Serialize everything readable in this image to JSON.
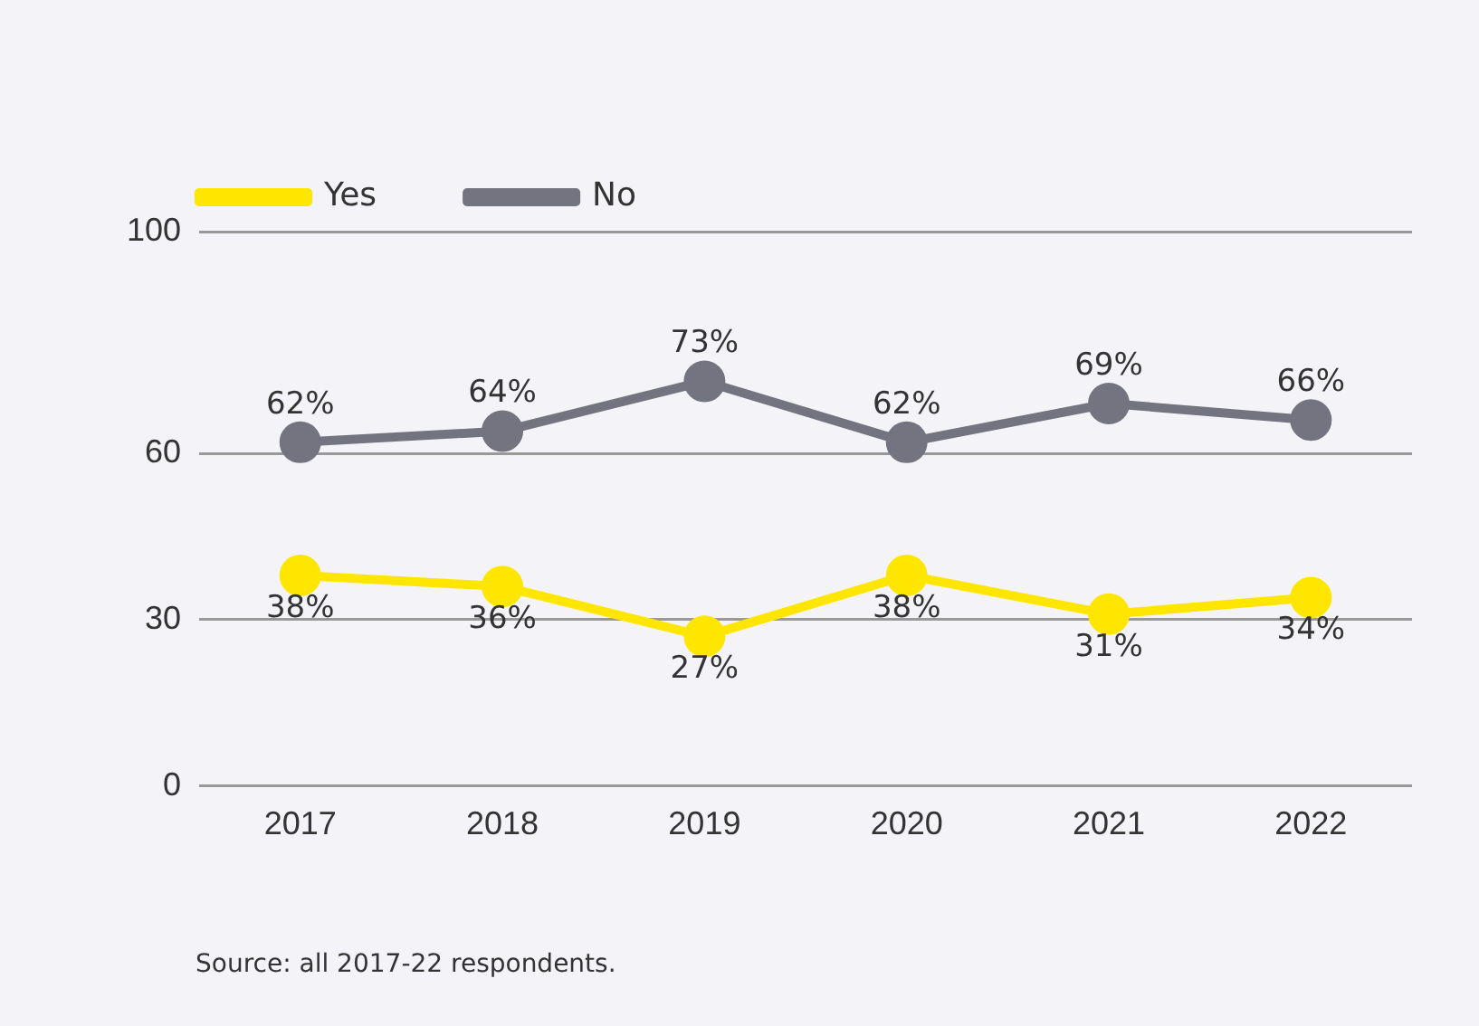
{
  "chart_data": {
    "type": "line",
    "categories": [
      "2017",
      "2018",
      "2019",
      "2020",
      "2021",
      "2022"
    ],
    "series": [
      {
        "name": "Yes",
        "color": "#ffe600",
        "values": [
          38,
          36,
          27,
          38,
          31,
          34
        ],
        "value_labels": [
          "38%",
          "36%",
          "27%",
          "38%",
          "31%",
          "34%"
        ]
      },
      {
        "name": "No",
        "color": "#747480",
        "values": [
          62,
          64,
          73,
          62,
          69,
          66
        ],
        "value_labels": [
          "62%",
          "64%",
          "73%",
          "62%",
          "69%",
          "66%"
        ]
      }
    ],
    "ylim": [
      0,
      100
    ],
    "yticks": [
      0,
      30,
      60,
      100
    ],
    "grid": "y",
    "legend": "top left",
    "marker": "circle",
    "line_style": "solid",
    "annotations": [
      "Source: all 2017-22 respondents."
    ]
  }
}
